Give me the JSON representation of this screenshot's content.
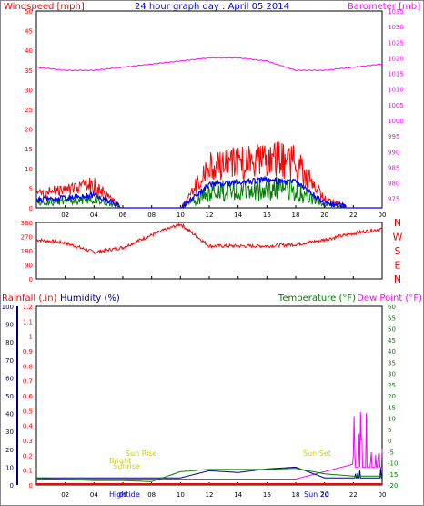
{
  "title": "24 hour graph day : April 05 2014",
  "colors": {
    "windspeed": "#ff0000",
    "gust": "#ff0000",
    "wind_avg": "#0000ff",
    "wind_low": "#008000",
    "barometer": "#ff00ff",
    "direction": "#ff0000",
    "rainfall": "#ff0000",
    "humidity": "#000080",
    "temperature": "#008000",
    "dewpoint": "#ff00ff",
    "solar": "#ffff00",
    "bg": "#ffffff",
    "grid": "#000000"
  },
  "top_panel": {
    "left_label": "Windspeed [mph]",
    "right_label": "Barometer [mb]",
    "left_ticks": [
      "50",
      "45",
      "40",
      "35",
      "30",
      "25",
      "20",
      "15",
      "10",
      "5",
      "0"
    ],
    "right_ticks": [
      "1035",
      "1030",
      "1025",
      "1020",
      "1015",
      "1010",
      "1005",
      "1000",
      "995",
      "990",
      "985",
      "980",
      "975"
    ]
  },
  "dir_panel": {
    "ticks": [
      "360",
      "270",
      "180",
      "90",
      "0"
    ],
    "compass": [
      "N",
      "W",
      "S",
      "E",
      "N"
    ]
  },
  "bottom_panel": {
    "rain_label": "Rainfall (.in)",
    "humidity_label": "Humidity (%)",
    "temp_label": "Temperature (°F)",
    "dew_label": "Dew Point (°F)",
    "humidity_ticks": [
      "100",
      "90",
      "80",
      "70",
      "60",
      "50",
      "40",
      "30",
      "20",
      "10",
      "0"
    ],
    "rain_ticks": [
      "1.2",
      "1.1",
      "1",
      "0.9",
      "0.8",
      "0.7",
      "0.6",
      "0.5",
      "0.4",
      "0.3",
      "0.2",
      "0.1",
      "0"
    ],
    "temp_ticks": [
      "60",
      "55",
      "50",
      "45",
      "40",
      "35",
      "30",
      "25",
      "20",
      "15",
      "10",
      "5",
      "0",
      "-5",
      "-10",
      "-15",
      "-20"
    ],
    "annotations": {
      "sun_rise": "Sun Rise",
      "sun_set": "Sun Set",
      "sun_20": "Sun 20",
      "high_tide": "Hightide",
      "bright": "Bright",
      "sunrise2": "Sunrise"
    }
  },
  "x_axis": [
    "02",
    "04",
    "06",
    "08",
    "10",
    "12",
    "14",
    "16",
    "18",
    "20",
    "22",
    "00"
  ],
  "chart_data": [
    {
      "type": "line",
      "title": "24 hour graph day : April 05 2014",
      "ylabel": "Windspeed [mph]",
      "y2label": "Barometer [mb]",
      "ylim": [
        0,
        50
      ],
      "y2lim": [
        972,
        1035
      ],
      "x": [
        "00",
        "02",
        "04",
        "06",
        "08",
        "10",
        "12",
        "14",
        "16",
        "18",
        "20",
        "22",
        "00"
      ],
      "series": [
        {
          "name": "Windspeed [mph]",
          "axis": "left",
          "values": [
            3,
            4,
            5,
            0,
            0,
            0,
            9,
            10,
            11,
            10,
            2,
            0,
            0
          ]
        },
        {
          "name": "Barometer [mb]",
          "axis": "right",
          "values": [
            1017,
            1016,
            1016,
            1017,
            1018,
            1019,
            1020,
            1020,
            1019,
            1016,
            1016,
            1017,
            1018
          ]
        }
      ]
    },
    {
      "type": "line",
      "ylim": [
        0,
        360
      ],
      "x": [
        "00",
        "02",
        "04",
        "06",
        "08",
        "10",
        "12",
        "14",
        "16",
        "18",
        "20",
        "22",
        "00"
      ],
      "series": [
        {
          "values": [
            250,
            230,
            170,
            200,
            280,
            350,
            210,
            210,
            210,
            220,
            250,
            290,
            320
          ]
        }
      ]
    },
    {
      "type": "line",
      "ylabel": "Humidity (%)",
      "y2label": "Temperature (°F)",
      "ylim": [
        0,
        100
      ],
      "y2lim": [
        -20,
        60
      ],
      "x": [
        "00",
        "02",
        "04",
        "06",
        "08",
        "10",
        "12",
        "14",
        "16",
        "18",
        "20",
        "22",
        "00"
      ],
      "series": [
        {
          "name": "Temperature (°F)",
          "axis": "right",
          "values": [
            -17,
            -17.5,
            -18,
            -18,
            -18.5,
            -14,
            -13,
            -13,
            -13,
            -12.5,
            -15,
            -16,
            -16
          ]
        },
        {
          "name": "Humidity (%)",
          "axis": "left",
          "values": [
            4,
            4,
            4,
            4,
            4,
            4,
            8,
            7,
            9,
            10,
            4,
            4,
            4
          ]
        },
        {
          "name": "Rainfall (.in)",
          "axis": "rain",
          "values": [
            0,
            0,
            0,
            0,
            0,
            0,
            0,
            0,
            0,
            0,
            0,
            0,
            0
          ]
        }
      ]
    }
  ]
}
